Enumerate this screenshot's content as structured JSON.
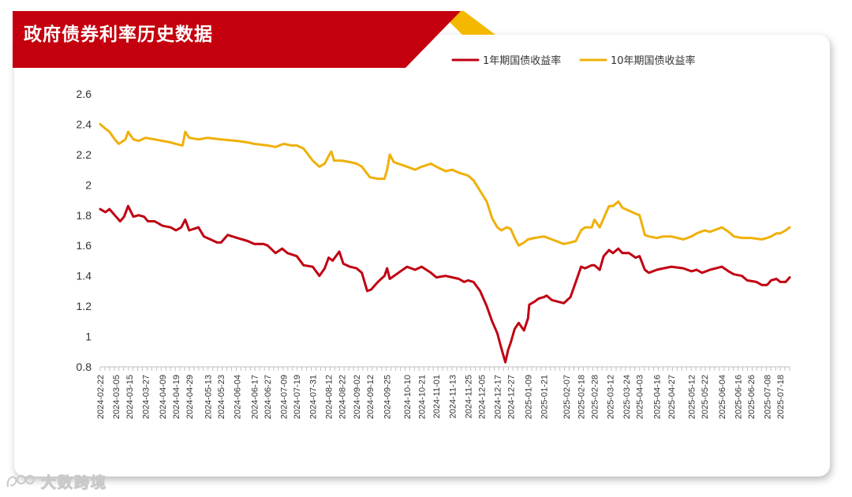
{
  "title": "政府债券利率历史数据",
  "watermark": "大数跨境",
  "colors": {
    "banner_red": "#c4000e",
    "banner_gold": "#f5b800",
    "series_1y": "#c00012",
    "series_10y": "#f0b00a"
  },
  "chart_data": {
    "type": "line",
    "legend_position": "top-right",
    "ylim": [
      0.8,
      2.6
    ],
    "yticks": [
      0.8,
      1,
      1.2,
      1.4,
      1.6,
      1.8,
      2,
      2.2,
      2.4,
      2.6
    ],
    "ytick_labels": [
      "0.8",
      "1",
      "1.2",
      "1.4",
      "1.6",
      "1.8",
      "2",
      "2.2",
      "2.4",
      "2.6"
    ],
    "xlim": [
      "2024-02-22",
      "2025-07-25"
    ],
    "xtick_labels": [
      "2024-02-22",
      "2024-03-05",
      "2024-03-15",
      "2024-03-27",
      "2024-04-09",
      "2024-04-19",
      "2024-04-29",
      "2024-05-13",
      "2024-05-23",
      "2024-06-04",
      "2024-06-17",
      "2024-06-27",
      "2024-07-09",
      "2024-07-19",
      "2024-07-31",
      "2024-08-12",
      "2024-08-22",
      "2024-09-02",
      "2024-09-12",
      "2024-09-25",
      "2024-10-10",
      "2024-10-21",
      "2024-11-01",
      "2024-11-13",
      "2024-11-25",
      "2024-12-05",
      "2024-12-17",
      "2024-12-27",
      "2025-01-09",
      "2025-01-21",
      "2025-02-07",
      "2025-02-18",
      "2025-02-28",
      "2025-03-12",
      "2025-03-24",
      "2025-04-03",
      "2025-04-16",
      "2025-04-27",
      "2025-05-12",
      "2025-05-22",
      "2025-06-04",
      "2025-06-16",
      "2025-06-26",
      "2025-07-08",
      "2025-07-18"
    ],
    "series": [
      {
        "name": "1年期国债收益率",
        "color": "#c00012",
        "points": [
          [
            "2024-02-22",
            1.84
          ],
          [
            "2024-02-26",
            1.82
          ],
          [
            "2024-02-29",
            1.84
          ],
          [
            "2024-03-04",
            1.8
          ],
          [
            "2024-03-08",
            1.76
          ],
          [
            "2024-03-11",
            1.79
          ],
          [
            "2024-03-14",
            1.86
          ],
          [
            "2024-03-18",
            1.79
          ],
          [
            "2024-03-22",
            1.8
          ],
          [
            "2024-03-26",
            1.79
          ],
          [
            "2024-03-29",
            1.76
          ],
          [
            "2024-04-03",
            1.76
          ],
          [
            "2024-04-09",
            1.73
          ],
          [
            "2024-04-15",
            1.72
          ],
          [
            "2024-04-19",
            1.7
          ],
          [
            "2024-04-23",
            1.72
          ],
          [
            "2024-04-26",
            1.77
          ],
          [
            "2024-04-29",
            1.7
          ],
          [
            "2024-05-06",
            1.72
          ],
          [
            "2024-05-10",
            1.66
          ],
          [
            "2024-05-15",
            1.64
          ],
          [
            "2024-05-20",
            1.62
          ],
          [
            "2024-05-23",
            1.62
          ],
          [
            "2024-05-28",
            1.67
          ],
          [
            "2024-06-04",
            1.65
          ],
          [
            "2024-06-12",
            1.63
          ],
          [
            "2024-06-17",
            1.61
          ],
          [
            "2024-06-24",
            1.61
          ],
          [
            "2024-06-27",
            1.6
          ],
          [
            "2024-07-03",
            1.55
          ],
          [
            "2024-07-08",
            1.58
          ],
          [
            "2024-07-12",
            1.55
          ],
          [
            "2024-07-19",
            1.53
          ],
          [
            "2024-07-24",
            1.47
          ],
          [
            "2024-07-31",
            1.46
          ],
          [
            "2024-08-05",
            1.4
          ],
          [
            "2024-08-09",
            1.45
          ],
          [
            "2024-08-12",
            1.52
          ],
          [
            "2024-08-15",
            1.5
          ],
          [
            "2024-08-20",
            1.56
          ],
          [
            "2024-08-23",
            1.48
          ],
          [
            "2024-08-28",
            1.46
          ],
          [
            "2024-09-02",
            1.45
          ],
          [
            "2024-09-06",
            1.42
          ],
          [
            "2024-09-10",
            1.3
          ],
          [
            "2024-09-13",
            1.31
          ],
          [
            "2024-09-18",
            1.36
          ],
          [
            "2024-09-23",
            1.4
          ],
          [
            "2024-09-25",
            1.45
          ],
          [
            "2024-09-27",
            1.38
          ],
          [
            "2024-10-10",
            1.46
          ],
          [
            "2024-10-16",
            1.44
          ],
          [
            "2024-10-21",
            1.46
          ],
          [
            "2024-10-28",
            1.42
          ],
          [
            "2024-11-01",
            1.39
          ],
          [
            "2024-11-08",
            1.4
          ],
          [
            "2024-11-13",
            1.39
          ],
          [
            "2024-11-18",
            1.38
          ],
          [
            "2024-11-22",
            1.36
          ],
          [
            "2024-11-25",
            1.37
          ],
          [
            "2024-11-29",
            1.36
          ],
          [
            "2024-12-04",
            1.3
          ],
          [
            "2024-12-09",
            1.2
          ],
          [
            "2024-12-13",
            1.1
          ],
          [
            "2024-12-17",
            1.02
          ],
          [
            "2024-12-20",
            0.92
          ],
          [
            "2024-12-23",
            0.83
          ],
          [
            "2024-12-25",
            0.91
          ],
          [
            "2024-12-27",
            0.96
          ],
          [
            "2024-12-30",
            1.05
          ],
          [
            "2025-01-02",
            1.09
          ],
          [
            "2025-01-06",
            1.04
          ],
          [
            "2025-01-09",
            1.12
          ],
          [
            "2025-01-10",
            1.21
          ],
          [
            "2025-01-14",
            1.23
          ],
          [
            "2025-01-17",
            1.25
          ],
          [
            "2025-01-21",
            1.26
          ],
          [
            "2025-01-23",
            1.27
          ],
          [
            "2025-01-27",
            1.24
          ],
          [
            "2025-02-05",
            1.22
          ],
          [
            "2025-02-10",
            1.26
          ],
          [
            "2025-02-14",
            1.36
          ],
          [
            "2025-02-18",
            1.46
          ],
          [
            "2025-02-21",
            1.45
          ],
          [
            "2025-02-26",
            1.47
          ],
          [
            "2025-02-28",
            1.47
          ],
          [
            "2025-03-04",
            1.44
          ],
          [
            "2025-03-07",
            1.53
          ],
          [
            "2025-03-11",
            1.57
          ],
          [
            "2025-03-14",
            1.55
          ],
          [
            "2025-03-18",
            1.58
          ],
          [
            "2025-03-21",
            1.55
          ],
          [
            "2025-03-26",
            1.55
          ],
          [
            "2025-03-31",
            1.52
          ],
          [
            "2025-04-03",
            1.53
          ],
          [
            "2025-04-07",
            1.44
          ],
          [
            "2025-04-10",
            1.42
          ],
          [
            "2025-04-16",
            1.44
          ],
          [
            "2025-04-21",
            1.45
          ],
          [
            "2025-04-27",
            1.46
          ],
          [
            "2025-05-06",
            1.45
          ],
          [
            "2025-05-12",
            1.43
          ],
          [
            "2025-05-16",
            1.44
          ],
          [
            "2025-05-20",
            1.42
          ],
          [
            "2025-05-26",
            1.44
          ],
          [
            "2025-06-04",
            1.46
          ],
          [
            "2025-06-09",
            1.43
          ],
          [
            "2025-06-13",
            1.41
          ],
          [
            "2025-06-19",
            1.4
          ],
          [
            "2025-06-23",
            1.37
          ],
          [
            "2025-06-30",
            1.36
          ],
          [
            "2025-07-04",
            1.34
          ],
          [
            "2025-07-08",
            1.34
          ],
          [
            "2025-07-11",
            1.37
          ],
          [
            "2025-07-15",
            1.38
          ],
          [
            "2025-07-18",
            1.36
          ],
          [
            "2025-07-22",
            1.36
          ],
          [
            "2025-07-25",
            1.39
          ]
        ]
      },
      {
        "name": "10年期国债收益率",
        "color": "#f0b00a",
        "points": [
          [
            "2024-02-22",
            2.4
          ],
          [
            "2024-02-26",
            2.37
          ],
          [
            "2024-02-29",
            2.35
          ],
          [
            "2024-03-04",
            2.3
          ],
          [
            "2024-03-07",
            2.27
          ],
          [
            "2024-03-12",
            2.3
          ],
          [
            "2024-03-14",
            2.35
          ],
          [
            "2024-03-18",
            2.3
          ],
          [
            "2024-03-22",
            2.29
          ],
          [
            "2024-03-27",
            2.31
          ],
          [
            "2024-04-03",
            2.3
          ],
          [
            "2024-04-09",
            2.29
          ],
          [
            "2024-04-15",
            2.28
          ],
          [
            "2024-04-19",
            2.27
          ],
          [
            "2024-04-24",
            2.26
          ],
          [
            "2024-04-26",
            2.35
          ],
          [
            "2024-04-29",
            2.31
          ],
          [
            "2024-05-06",
            2.3
          ],
          [
            "2024-05-13",
            2.31
          ],
          [
            "2024-05-23",
            2.3
          ],
          [
            "2024-06-04",
            2.29
          ],
          [
            "2024-06-12",
            2.28
          ],
          [
            "2024-06-17",
            2.27
          ],
          [
            "2024-06-27",
            2.26
          ],
          [
            "2024-07-03",
            2.25
          ],
          [
            "2024-07-09",
            2.27
          ],
          [
            "2024-07-15",
            2.26
          ],
          [
            "2024-07-19",
            2.26
          ],
          [
            "2024-07-24",
            2.24
          ],
          [
            "2024-07-31",
            2.16
          ],
          [
            "2024-08-05",
            2.12
          ],
          [
            "2024-08-09",
            2.14
          ],
          [
            "2024-08-12",
            2.19
          ],
          [
            "2024-08-14",
            2.22
          ],
          [
            "2024-08-16",
            2.16
          ],
          [
            "2024-08-22",
            2.16
          ],
          [
            "2024-08-28",
            2.15
          ],
          [
            "2024-09-02",
            2.14
          ],
          [
            "2024-09-06",
            2.12
          ],
          [
            "2024-09-12",
            2.05
          ],
          [
            "2024-09-18",
            2.04
          ],
          [
            "2024-09-23",
            2.04
          ],
          [
            "2024-09-25",
            2.1
          ],
          [
            "2024-09-27",
            2.2
          ],
          [
            "2024-09-30",
            2.15
          ],
          [
            "2024-10-10",
            2.12
          ],
          [
            "2024-10-16",
            2.1
          ],
          [
            "2024-10-21",
            2.12
          ],
          [
            "2024-10-28",
            2.14
          ],
          [
            "2024-11-01",
            2.12
          ],
          [
            "2024-11-08",
            2.09
          ],
          [
            "2024-11-13",
            2.1
          ],
          [
            "2024-11-18",
            2.08
          ],
          [
            "2024-11-22",
            2.07
          ],
          [
            "2024-11-25",
            2.06
          ],
          [
            "2024-11-29",
            2.03
          ],
          [
            "2024-12-04",
            1.96
          ],
          [
            "2024-12-09",
            1.89
          ],
          [
            "2024-12-13",
            1.78
          ],
          [
            "2024-12-17",
            1.72
          ],
          [
            "2024-12-20",
            1.7
          ],
          [
            "2024-12-24",
            1.72
          ],
          [
            "2024-12-27",
            1.71
          ],
          [
            "2024-12-30",
            1.65
          ],
          [
            "2025-01-02",
            1.6
          ],
          [
            "2025-01-06",
            1.62
          ],
          [
            "2025-01-09",
            1.64
          ],
          [
            "2025-01-14",
            1.65
          ],
          [
            "2025-01-21",
            1.66
          ],
          [
            "2025-01-27",
            1.64
          ],
          [
            "2025-02-05",
            1.61
          ],
          [
            "2025-02-10",
            1.62
          ],
          [
            "2025-02-14",
            1.63
          ],
          [
            "2025-02-18",
            1.7
          ],
          [
            "2025-02-21",
            1.72
          ],
          [
            "2025-02-26",
            1.72
          ],
          [
            "2025-02-28",
            1.77
          ],
          [
            "2025-03-04",
            1.72
          ],
          [
            "2025-03-07",
            1.78
          ],
          [
            "2025-03-11",
            1.86
          ],
          [
            "2025-03-14",
            1.86
          ],
          [
            "2025-03-18",
            1.89
          ],
          [
            "2025-03-21",
            1.85
          ],
          [
            "2025-03-26",
            1.83
          ],
          [
            "2025-03-31",
            1.81
          ],
          [
            "2025-04-03",
            1.8
          ],
          [
            "2025-04-07",
            1.67
          ],
          [
            "2025-04-10",
            1.66
          ],
          [
            "2025-04-16",
            1.65
          ],
          [
            "2025-04-21",
            1.66
          ],
          [
            "2025-04-27",
            1.66
          ],
          [
            "2025-05-06",
            1.64
          ],
          [
            "2025-05-12",
            1.66
          ],
          [
            "2025-05-16",
            1.68
          ],
          [
            "2025-05-22",
            1.7
          ],
          [
            "2025-05-26",
            1.69
          ],
          [
            "2025-06-04",
            1.72
          ],
          [
            "2025-06-09",
            1.69
          ],
          [
            "2025-06-13",
            1.66
          ],
          [
            "2025-06-19",
            1.65
          ],
          [
            "2025-06-26",
            1.65
          ],
          [
            "2025-07-04",
            1.64
          ],
          [
            "2025-07-08",
            1.65
          ],
          [
            "2025-07-11",
            1.66
          ],
          [
            "2025-07-15",
            1.68
          ],
          [
            "2025-07-18",
            1.68
          ],
          [
            "2025-07-22",
            1.7
          ],
          [
            "2025-07-25",
            1.72
          ]
        ]
      }
    ]
  }
}
